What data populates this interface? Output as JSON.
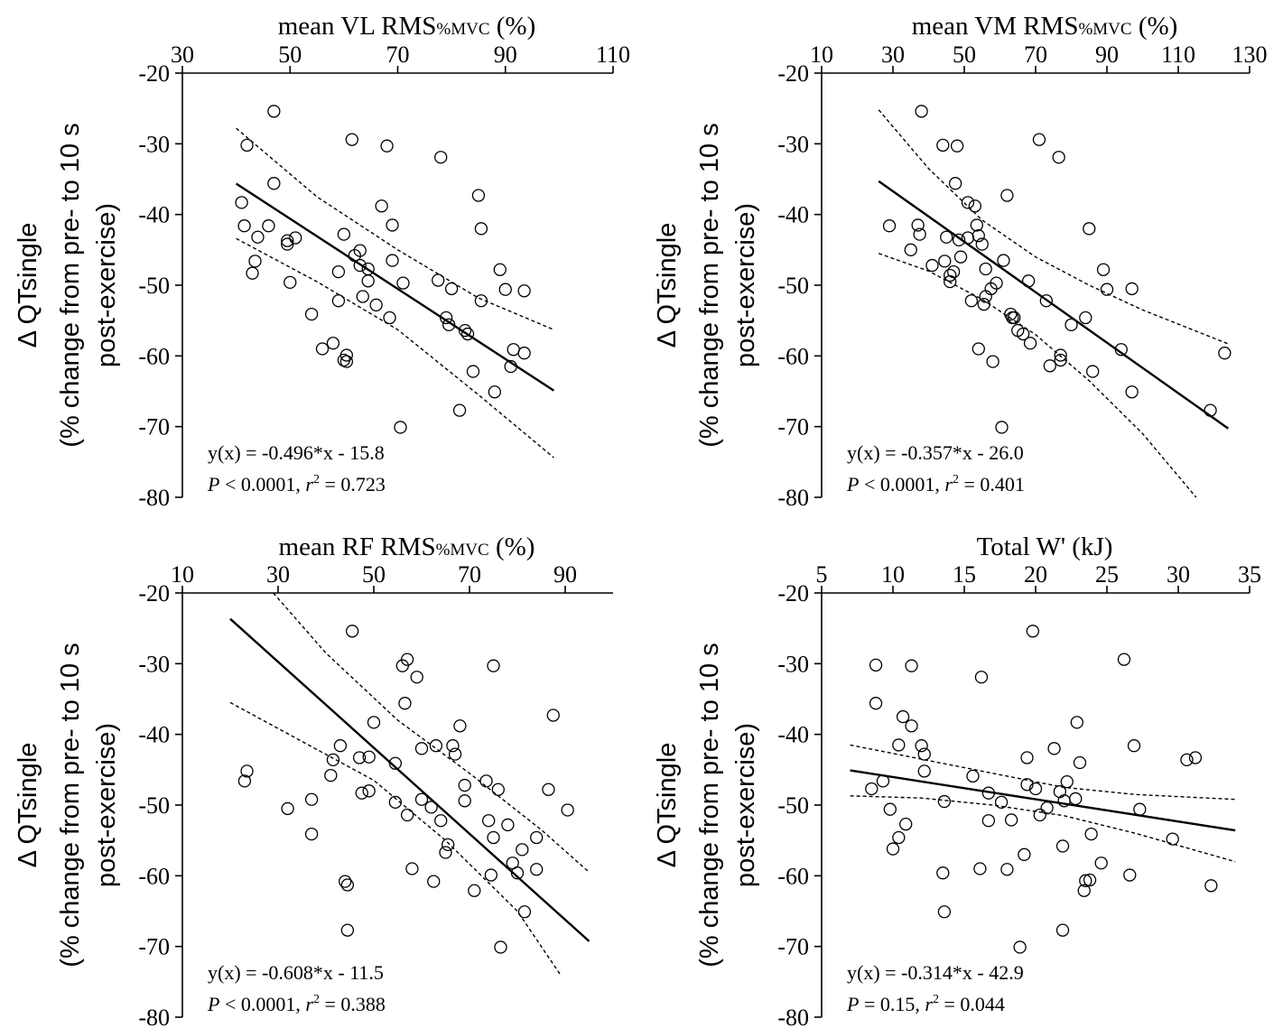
{
  "chart_data": [
    {
      "id": "vl",
      "type": "scatter",
      "x_title": {
        "main": "mean VL RMS",
        "sub": "%MVC",
        "tail": " (%)"
      },
      "y_title": {
        "line1": "Δ QTsingle",
        "line2": "(% change from pre- to 10 s",
        "line3": "post-exercise)"
      },
      "xlim": [
        30,
        110
      ],
      "xticks": [
        30,
        50,
        70,
        90,
        110
      ],
      "ylim": [
        -80,
        -20
      ],
      "yticks": [
        -20,
        -30,
        -40,
        -50,
        -60,
        -70,
        -80
      ],
      "equation": "y(x) = -0.496*x - 15.8",
      "stats": {
        "p_label": "P",
        "p_text": " < 0.0001, ",
        "r_label": "r",
        "r_sup": "2",
        "r_text": " = 0.723"
      },
      "fit": {
        "slope": -0.496,
        "intercept": -15.8,
        "x_range": [
          40,
          99
        ]
      },
      "ci_upper": [
        [
          40,
          -27.8
        ],
        [
          55,
          -37.5
        ],
        [
          70,
          -45.0
        ],
        [
          85,
          -51.8
        ],
        [
          99,
          -56.3
        ]
      ],
      "ci_lower": [
        [
          40,
          -43.4
        ],
        [
          55,
          -49.5
        ],
        [
          70,
          -56.3
        ],
        [
          85,
          -65.5
        ],
        [
          99,
          -74.4
        ]
      ],
      "points": [
        [
          42,
          -30.2
        ],
        [
          41,
          -38.3
        ],
        [
          41.5,
          -41.6
        ],
        [
          43,
          -48.3
        ],
        [
          43.5,
          -46.6
        ],
        [
          44,
          -43.2
        ],
        [
          46,
          -41.6
        ],
        [
          47,
          -25.4
        ],
        [
          47,
          -35.6
        ],
        [
          49.5,
          -43.7
        ],
        [
          49.5,
          -44.2
        ],
        [
          50,
          -49.6
        ],
        [
          51,
          -43.3
        ],
        [
          54,
          -54.1
        ],
        [
          56,
          -59.0
        ],
        [
          58,
          -58.2
        ],
        [
          59,
          -48.1
        ],
        [
          59,
          -52.2
        ],
        [
          60,
          -42.8
        ],
        [
          60,
          -60.6
        ],
        [
          60.5,
          -60.8
        ],
        [
          60.5,
          -59.9
        ],
        [
          61.5,
          -29.4
        ],
        [
          62,
          -45.8
        ],
        [
          63,
          -45.1
        ],
        [
          63,
          -47.2
        ],
        [
          63.5,
          -51.6
        ],
        [
          64.5,
          -47.7
        ],
        [
          64.5,
          -49.4
        ],
        [
          66,
          -52.8
        ],
        [
          67,
          -38.8
        ],
        [
          68,
          -30.3
        ],
        [
          68.5,
          -54.6
        ],
        [
          69,
          -46.5
        ],
        [
          69,
          -41.5
        ],
        [
          70.5,
          -70.1
        ],
        [
          71,
          -49.7
        ],
        [
          77.5,
          -49.3
        ],
        [
          78,
          -31.9
        ],
        [
          79,
          -54.6
        ],
        [
          79.5,
          -55.6
        ],
        [
          80,
          -50.5
        ],
        [
          81.5,
          -67.7
        ],
        [
          82.5,
          -56.4
        ],
        [
          83,
          -56.9
        ],
        [
          84,
          -62.2
        ],
        [
          85,
          -37.3
        ],
        [
          85.5,
          -42.0
        ],
        [
          85.5,
          -52.2
        ],
        [
          88,
          -65.1
        ],
        [
          89,
          -47.8
        ],
        [
          90,
          -50.6
        ],
        [
          91,
          -61.5
        ],
        [
          91.5,
          -59.1
        ],
        [
          93.5,
          -50.8
        ],
        [
          93.5,
          -59.6
        ]
      ]
    },
    {
      "id": "vm",
      "type": "scatter",
      "x_title": {
        "main": "mean VM RMS",
        "sub": "%MVC",
        "tail": " (%)"
      },
      "y_title": {
        "line1": "Δ QTsingle",
        "line2": "(% change from pre- to 10 s",
        "line3": "post-exercise)"
      },
      "xlim": [
        10,
        130
      ],
      "xticks": [
        10,
        30,
        50,
        70,
        90,
        110,
        130
      ],
      "ylim": [
        -80,
        -20
      ],
      "yticks": [
        -20,
        -30,
        -40,
        -50,
        -60,
        -70,
        -80
      ],
      "equation": "y(x) = -0.357*x - 26.0",
      "stats": {
        "p_label": "P",
        "p_text": " < 0.0001, ",
        "r_label": "r",
        "r_sup": "2",
        "r_text": " = 0.401"
      },
      "fit": {
        "slope": -0.357,
        "intercept": -26.0,
        "x_range": [
          26,
          124
        ]
      },
      "ci_upper": [
        [
          26,
          -25.2
        ],
        [
          40,
          -33.5
        ],
        [
          55,
          -40.8
        ],
        [
          70,
          -46.0
        ],
        [
          85,
          -50.0
        ],
        [
          100,
          -53.5
        ],
        [
          124,
          -58.3
        ]
      ],
      "ci_lower": [
        [
          26,
          -45.5
        ],
        [
          40,
          -48.0
        ],
        [
          55,
          -52.0
        ],
        [
          70,
          -57.0
        ],
        [
          85,
          -63.5
        ],
        [
          100,
          -71.0
        ],
        [
          115,
          -80.0
        ]
      ],
      "points": [
        [
          29,
          -41.6
        ],
        [
          35,
          -45.0
        ],
        [
          37,
          -41.5
        ],
        [
          37.5,
          -42.8
        ],
        [
          38,
          -25.4
        ],
        [
          41,
          -47.2
        ],
        [
          44,
          -30.2
        ],
        [
          44.5,
          -46.6
        ],
        [
          45,
          -43.2
        ],
        [
          46,
          -48.6
        ],
        [
          46,
          -49.5
        ],
        [
          47,
          -48.1
        ],
        [
          47.5,
          -35.6
        ],
        [
          48,
          -30.3
        ],
        [
          48.5,
          -43.6
        ],
        [
          49,
          -46.0
        ],
        [
          51,
          -38.3
        ],
        [
          51,
          -43.3
        ],
        [
          52,
          -52.2
        ],
        [
          53,
          -38.8
        ],
        [
          53.5,
          -41.5
        ],
        [
          54,
          -59.0
        ],
        [
          54,
          -43.0
        ],
        [
          55,
          -44.2
        ],
        [
          55.5,
          -52.7
        ],
        [
          56,
          -47.7
        ],
        [
          56,
          -51.6
        ],
        [
          57.5,
          -50.5
        ],
        [
          58,
          -60.8
        ],
        [
          59,
          -49.7
        ],
        [
          60.5,
          -70.1
        ],
        [
          61,
          -46.5
        ],
        [
          62,
          -37.3
        ],
        [
          63,
          -54.1
        ],
        [
          63.5,
          -54.6
        ],
        [
          64,
          -54.6
        ],
        [
          65,
          -56.4
        ],
        [
          66.5,
          -56.9
        ],
        [
          68,
          -49.4
        ],
        [
          68.5,
          -58.2
        ],
        [
          71,
          -29.4
        ],
        [
          73,
          -52.2
        ],
        [
          74,
          -61.4
        ],
        [
          76.5,
          -31.9
        ],
        [
          77,
          -60.6
        ],
        [
          77,
          -59.9
        ],
        [
          80,
          -55.6
        ],
        [
          84,
          -54.6
        ],
        [
          85,
          -42.0
        ],
        [
          86,
          -62.2
        ],
        [
          89,
          -47.8
        ],
        [
          90,
          -50.6
        ],
        [
          94,
          -59.1
        ],
        [
          97,
          -65.1
        ],
        [
          97,
          -50.5
        ],
        [
          119,
          -67.7
        ],
        [
          123,
          -59.6
        ]
      ]
    },
    {
      "id": "rf",
      "type": "scatter",
      "x_title": {
        "main": "mean RF RMS",
        "sub": "%MVC",
        "tail": " (%)"
      },
      "y_title": {
        "line1": "Δ QTsingle",
        "line2": "(% change from pre- to 10 s",
        "line3": "post-exercise)"
      },
      "xlim": [
        10,
        100
      ],
      "xticks": [
        10,
        30,
        50,
        70,
        90
      ],
      "ylim": [
        -80,
        -20
      ],
      "yticks": [
        -20,
        -30,
        -40,
        -50,
        -60,
        -70,
        -80
      ],
      "equation": "y(x) = -0.608*x - 11.5",
      "stats": {
        "p_label": "P",
        "p_text": " < 0.0001, ",
        "r_label": "r",
        "r_sup": "2",
        "r_text": " = 0.388"
      },
      "fit": {
        "slope": -0.608,
        "intercept": -11.5,
        "x_range": [
          20,
          95
        ]
      },
      "ci_upper": [
        [
          29,
          -20.0
        ],
        [
          40,
          -28.5
        ],
        [
          55,
          -38.0
        ],
        [
          70,
          -45.5
        ],
        [
          85,
          -53.5
        ],
        [
          95,
          -59.5
        ]
      ],
      "ci_lower": [
        [
          20,
          -35.5
        ],
        [
          35,
          -41.0
        ],
        [
          50,
          -46.5
        ],
        [
          65,
          -55.0
        ],
        [
          80,
          -65.0
        ],
        [
          89,
          -74.0
        ]
      ],
      "points": [
        [
          23,
          -46.6
        ],
        [
          23.5,
          -45.2
        ],
        [
          32,
          -50.5
        ],
        [
          37,
          -49.2
        ],
        [
          37,
          -54.1
        ],
        [
          41,
          -45.8
        ],
        [
          41.5,
          -43.6
        ],
        [
          43,
          -41.6
        ],
        [
          44,
          -60.8
        ],
        [
          44.5,
          -67.7
        ],
        [
          44.5,
          -61.3
        ],
        [
          45.5,
          -25.4
        ],
        [
          47,
          -43.3
        ],
        [
          47.5,
          -48.3
        ],
        [
          49,
          -43.2
        ],
        [
          49,
          -48.0
        ],
        [
          50,
          -38.3
        ],
        [
          54.5,
          -44.1
        ],
        [
          54.5,
          -49.6
        ],
        [
          56,
          -30.3
        ],
        [
          56.5,
          -35.6
        ],
        [
          57,
          -29.4
        ],
        [
          57,
          -51.4
        ],
        [
          58,
          -59.0
        ],
        [
          59,
          -31.9
        ],
        [
          60,
          -42.0
        ],
        [
          60,
          -49.2
        ],
        [
          62,
          -50.3
        ],
        [
          62.5,
          -60.8
        ],
        [
          63,
          -41.6
        ],
        [
          64,
          -52.2
        ],
        [
          65,
          -56.7
        ],
        [
          65.5,
          -55.6
        ],
        [
          66.5,
          -41.6
        ],
        [
          67,
          -42.8
        ],
        [
          68,
          -38.8
        ],
        [
          69,
          -47.2
        ],
        [
          69,
          -49.4
        ],
        [
          71,
          -62.1
        ],
        [
          73.5,
          -46.6
        ],
        [
          74,
          -52.2
        ],
        [
          74.5,
          -59.9
        ],
        [
          75,
          -54.6
        ],
        [
          75,
          -30.3
        ],
        [
          76,
          -47.8
        ],
        [
          76.5,
          -70.1
        ],
        [
          78,
          -52.8
        ],
        [
          79,
          -58.2
        ],
        [
          80,
          -59.6
        ],
        [
          81,
          -56.3
        ],
        [
          81.5,
          -65.1
        ],
        [
          84,
          -54.6
        ],
        [
          84,
          -59.1
        ],
        [
          86.5,
          -47.8
        ],
        [
          87.5,
          -37.3
        ],
        [
          90.5,
          -50.7
        ]
      ]
    },
    {
      "id": "w",
      "type": "scatter",
      "x_title": {
        "main": "Total W' (kJ)",
        "sub": "",
        "tail": ""
      },
      "y_title": {
        "line1": "Δ QTsingle",
        "line2": "(% change from pre- to 10 s",
        "line3": "post-exercise)"
      },
      "xlim": [
        5,
        35
      ],
      "xticks": [
        5,
        10,
        15,
        20,
        25,
        30,
        35
      ],
      "ylim": [
        -80,
        -20
      ],
      "yticks": [
        -20,
        -30,
        -40,
        -50,
        -60,
        -70,
        -80
      ],
      "equation": "y(x) = -0.314*x - 42.9",
      "stats": {
        "p_label": "P",
        "p_text": " = 0.15, ",
        "r_label": "r",
        "r_sup": "2",
        "r_text": " = 0.044"
      },
      "fit": {
        "slope": -0.314,
        "intercept": -42.9,
        "x_range": [
          7,
          34
        ]
      },
      "ci_upper": [
        [
          7,
          -41.5
        ],
        [
          12,
          -43.5
        ],
        [
          17,
          -45.5
        ],
        [
          22,
          -47.5
        ],
        [
          27,
          -48.5
        ],
        [
          34,
          -49.2
        ]
      ],
      "ci_lower": [
        [
          7,
          -48.7
        ],
        [
          12,
          -49.0
        ],
        [
          17,
          -50.0
        ],
        [
          22,
          -51.5
        ],
        [
          27,
          -54.0
        ],
        [
          34,
          -58.0
        ]
      ],
      "points": [
        [
          8.5,
          -47.7
        ],
        [
          8.8,
          -35.6
        ],
        [
          8.8,
          -30.2
        ],
        [
          9.3,
          -46.6
        ],
        [
          9.8,
          -50.6
        ],
        [
          10,
          -56.2
        ],
        [
          10.4,
          -54.6
        ],
        [
          10.4,
          -41.5
        ],
        [
          10.7,
          -37.5
        ],
        [
          10.9,
          -52.7
        ],
        [
          11.3,
          -30.3
        ],
        [
          11.3,
          -38.8
        ],
        [
          12,
          -41.6
        ],
        [
          12.2,
          -42.8
        ],
        [
          12.2,
          -45.2
        ],
        [
          13.5,
          -59.6
        ],
        [
          13.6,
          -49.5
        ],
        [
          13.6,
          -65.1
        ],
        [
          15.6,
          -45.9
        ],
        [
          16.1,
          -59.0
        ],
        [
          16.2,
          -31.9
        ],
        [
          16.7,
          -48.3
        ],
        [
          16.7,
          -52.2
        ],
        [
          17.6,
          -49.6
        ],
        [
          18,
          -59.1
        ],
        [
          18.3,
          -52.1
        ],
        [
          18.9,
          -70.1
        ],
        [
          19.2,
          -57.0
        ],
        [
          19.4,
          -47.1
        ],
        [
          19.4,
          -43.3
        ],
        [
          19.8,
          -25.4
        ],
        [
          20,
          -47.7
        ],
        [
          20.3,
          -51.4
        ],
        [
          20.8,
          -50.4
        ],
        [
          21.3,
          -42.0
        ],
        [
          21.7,
          -48.1
        ],
        [
          21.9,
          -55.8
        ],
        [
          21.9,
          -67.7
        ],
        [
          22,
          -49.4
        ],
        [
          22.2,
          -46.7
        ],
        [
          22.8,
          -49.1
        ],
        [
          22.9,
          -38.3
        ],
        [
          23.1,
          -44.0
        ],
        [
          23.4,
          -62.1
        ],
        [
          23.5,
          -60.7
        ],
        [
          23.8,
          -60.6
        ],
        [
          23.9,
          -54.1
        ],
        [
          24.6,
          -58.2
        ],
        [
          26.2,
          -29.4
        ],
        [
          26.6,
          -59.9
        ],
        [
          26.9,
          -41.6
        ],
        [
          27.3,
          -50.6
        ],
        [
          29.6,
          -54.8
        ],
        [
          30.6,
          -43.6
        ],
        [
          31.2,
          -43.3
        ],
        [
          32.3,
          -61.4
        ]
      ]
    }
  ]
}
